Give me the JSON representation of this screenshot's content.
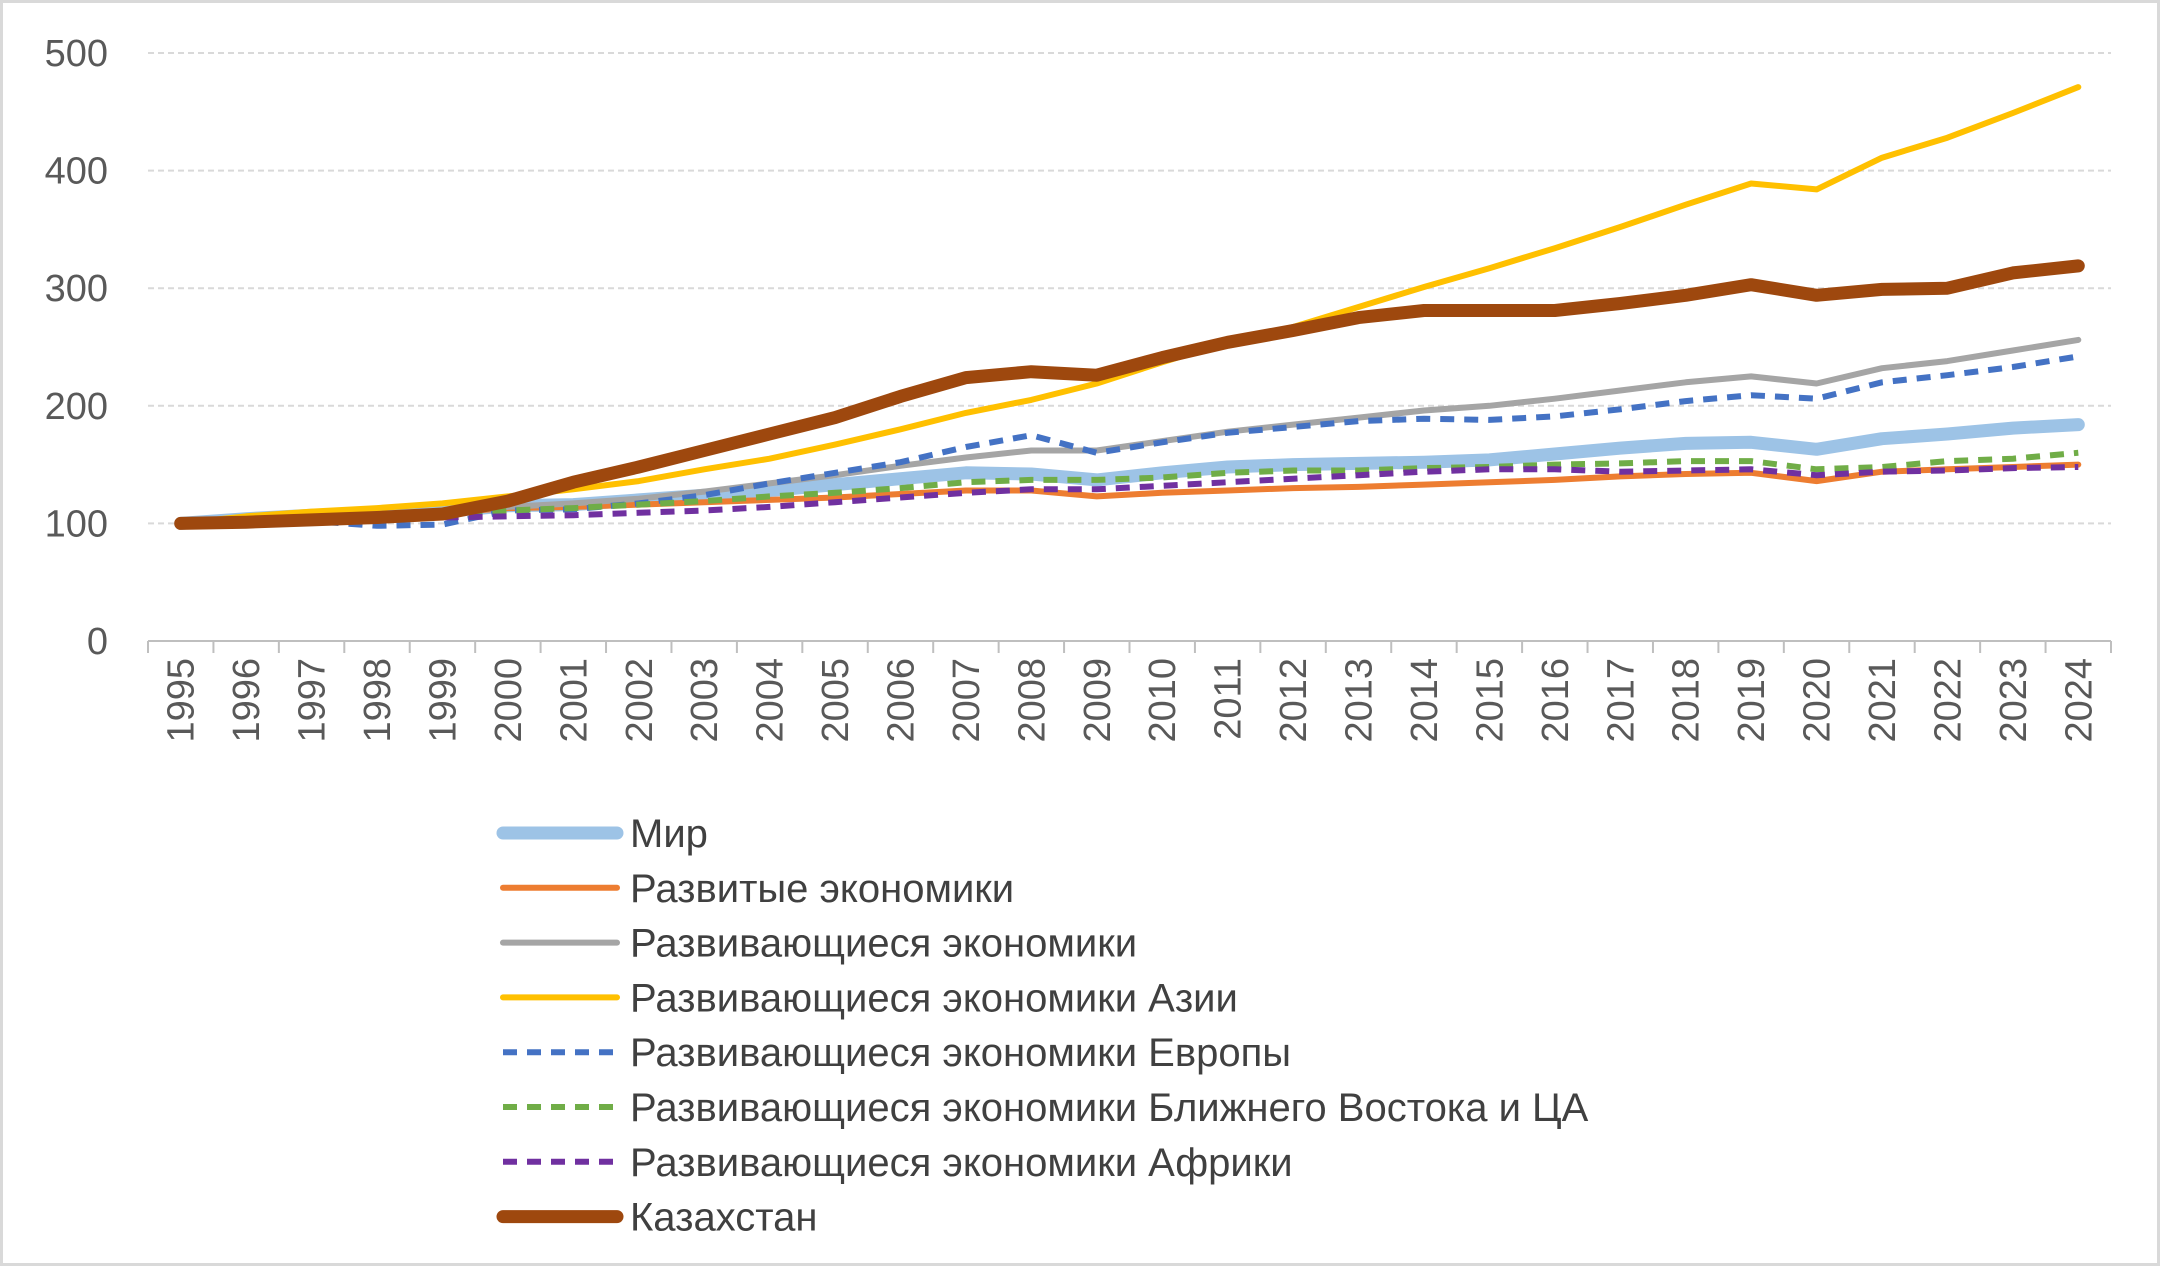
{
  "chart_data": {
    "type": "line",
    "title": "",
    "xlabel": "",
    "ylabel": "",
    "ylim": [
      0,
      500
    ],
    "yticks": [
      0,
      100,
      200,
      300,
      400,
      500
    ],
    "grid": "horizontal, dashed",
    "legend_position": "bottom",
    "categories": [
      "1995",
      "1996",
      "1997",
      "1998",
      "1999",
      "2000",
      "2001",
      "2002",
      "2003",
      "2004",
      "2005",
      "2006",
      "2007",
      "2008",
      "2009",
      "2010",
      "2011",
      "2012",
      "2013",
      "2014",
      "2015",
      "2016",
      "2017",
      "2018",
      "2019",
      "2020",
      "2021",
      "2022",
      "2023",
      "2024"
    ],
    "series": [
      {
        "name": "Мир",
        "color": "#9dc3e6",
        "dash": false,
        "width": 13,
        "values": [
          100,
          104,
          107,
          108,
          110,
          115,
          116,
          120,
          124,
          128,
          133,
          138,
          143,
          142,
          137,
          143,
          148,
          150,
          151,
          152,
          154,
          159,
          164,
          168,
          169,
          163,
          172,
          176,
          181,
          184
        ]
      },
      {
        "name": "Развитые экономики",
        "color": "#ed7d31",
        "dash": false,
        "width": 6,
        "values": [
          100,
          103,
          105,
          107,
          109,
          113,
          114,
          116,
          118,
          120,
          122,
          125,
          128,
          128,
          123,
          126,
          128,
          130,
          131,
          133,
          135,
          137,
          140,
          142,
          143,
          136,
          144,
          146,
          148,
          150
        ]
      },
      {
        "name": "Развивающиеся экономики",
        "color": "#a5a5a5",
        "dash": false,
        "width": 6,
        "values": [
          100,
          104,
          107,
          108,
          109,
          114,
          117,
          121,
          127,
          134,
          141,
          149,
          156,
          162,
          162,
          170,
          178,
          184,
          190,
          196,
          200,
          206,
          213,
          220,
          225,
          219,
          232,
          238,
          247,
          256
        ]
      },
      {
        "name": "Развивающиеся экономики Азии",
        "color": "#ffc000",
        "dash": false,
        "width": 6,
        "values": [
          100,
          106,
          110,
          113,
          117,
          123,
          129,
          136,
          146,
          155,
          167,
          180,
          194,
          205,
          219,
          237,
          254,
          267,
          284,
          301,
          317,
          334,
          352,
          371,
          389,
          384,
          411,
          428,
          449,
          471
        ]
      },
      {
        "name": "Развивающиеся экономики Европы",
        "color": "#4472c4",
        "dash": true,
        "width": 6,
        "values": [
          100,
          101,
          102,
          98,
          99,
          111,
          112,
          117,
          124,
          134,
          143,
          152,
          165,
          175,
          160,
          169,
          177,
          182,
          187,
          189,
          188,
          191,
          197,
          204,
          209,
          206,
          220,
          226,
          233,
          242
        ]
      },
      {
        "name": "Развивающиеся экономики Ближнего Востока и ЦА",
        "color": "#70ad47",
        "dash": true,
        "width": 6,
        "values": [
          100,
          103,
          105,
          106,
          107,
          111,
          113,
          116,
          119,
          123,
          126,
          130,
          135,
          137,
          137,
          139,
          143,
          145,
          145,
          147,
          148,
          150,
          151,
          153,
          153,
          146,
          148,
          153,
          155,
          160
        ]
      },
      {
        "name": "Развивающиеся экономики Африки",
        "color": "#7030a0",
        "dash": true,
        "width": 6,
        "values": [
          100,
          101,
          103,
          105,
          105,
          106,
          107,
          109,
          111,
          114,
          118,
          122,
          126,
          129,
          129,
          132,
          135,
          138,
          141,
          144,
          146,
          146,
          144,
          145,
          146,
          141,
          144,
          145,
          147,
          148
        ]
      },
      {
        "name": "Казахстан",
        "color": "#9e480e",
        "dash": false,
        "width": 13,
        "values": [
          100,
          101,
          103,
          105,
          108,
          119,
          135,
          148,
          162,
          176,
          190,
          208,
          224,
          229,
          226,
          241,
          254,
          264,
          275,
          281,
          281,
          281,
          287,
          294,
          303,
          294,
          299,
          300,
          313,
          319
        ]
      }
    ]
  }
}
